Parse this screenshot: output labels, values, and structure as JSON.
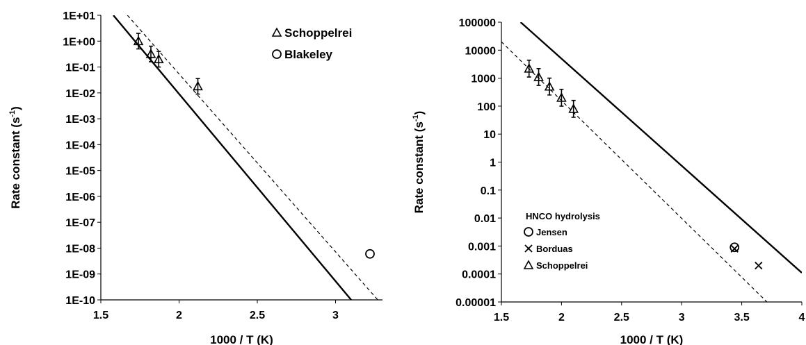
{
  "chart_data": [
    {
      "type": "scatter",
      "xlabel": "1000 / T (K)",
      "ylabel": "Rate constant (s⁻¹)",
      "ylabel_main": "Rate constant (s",
      "ylabel_sup": "-1",
      "ylabel_close": ")",
      "y_scale": "log",
      "xlim": [
        1.5,
        3.3
      ],
      "ylim": [
        1e-10,
        10
      ],
      "x_ticks": [
        1.5,
        2,
        2.5,
        3
      ],
      "x_tick_labels": [
        "1.5",
        "2",
        "2.5",
        "3"
      ],
      "y_ticks": [
        1e-10,
        1e-09,
        1e-08,
        1e-07,
        1e-06,
        1e-05,
        0.0001,
        0.001,
        0.01,
        0.1,
        1,
        10
      ],
      "y_tick_labels": [
        "1E-10",
        "1E-09",
        "1E-08",
        "1E-07",
        "1E-06",
        "1E-05",
        "1E-04",
        "1E-03",
        "1E-02",
        "1E-01",
        "1E+00",
        "1E+01"
      ],
      "legend_position": "top-right",
      "series": [
        {
          "name": "Schoppelrei",
          "marker": "triangle",
          "x": [
            1.74,
            1.82,
            1.87,
            2.12
          ],
          "y": [
            1.0,
            0.32,
            0.2,
            0.018
          ],
          "err_low": [
            0.5,
            0.16,
            0.1,
            0.009
          ],
          "err_high": [
            2.0,
            0.64,
            0.4,
            0.036
          ]
        },
        {
          "name": "Blakeley",
          "marker": "circle",
          "x": [
            3.22
          ],
          "y": [
            6e-09
          ]
        }
      ],
      "lines": [
        {
          "style": "solid",
          "x": [
            1.58,
            3.1
          ],
          "y": [
            10,
            1e-10
          ]
        },
        {
          "style": "dashed",
          "x": [
            1.67,
            3.27
          ],
          "y": [
            10,
            1e-10
          ]
        }
      ]
    },
    {
      "type": "scatter",
      "xlabel": "1000 / T (K)",
      "ylabel": "Rate constant (s⁻¹)",
      "ylabel_main": "Rate constant (s",
      "ylabel_sup": "-1",
      "ylabel_close": ")",
      "y_scale": "log",
      "xlim": [
        1.5,
        4
      ],
      "ylim": [
        1e-05,
        100000
      ],
      "x_ticks": [
        1.5,
        2,
        2.5,
        3,
        3.5,
        4
      ],
      "x_tick_labels": [
        "1.5",
        "2",
        "2.5",
        "3",
        "3.5",
        "4"
      ],
      "y_ticks": [
        1e-05,
        0.0001,
        0.001,
        0.01,
        0.1,
        1,
        10,
        100,
        1000,
        10000,
        100000
      ],
      "y_tick_labels": [
        "0.00001",
        "0.0001",
        "0.001",
        "0.01",
        "0.1",
        "1",
        "10",
        "100",
        "1000",
        "10000",
        "100000"
      ],
      "legend_title": "HNCO hydrolysis",
      "legend_position": "bottom-left",
      "series": [
        {
          "name": "Jensen",
          "marker": "circle",
          "x": [
            3.44
          ],
          "y": [
            0.0009
          ]
        },
        {
          "name": "Borduas",
          "marker": "x",
          "x": [
            3.44,
            3.64
          ],
          "y": [
            0.0008,
            0.0002
          ]
        },
        {
          "name": "Schoppelrei",
          "marker": "triangle",
          "x": [
            1.73,
            1.81,
            1.9,
            2.0,
            2.1
          ],
          "y": [
            2200,
            1100,
            500,
            200,
            80
          ],
          "err_low": [
            1100,
            550,
            250,
            100,
            40
          ],
          "err_high": [
            4400,
            2200,
            1000,
            400,
            160
          ]
        }
      ],
      "lines": [
        {
          "style": "solid",
          "x": [
            1.66,
            4.0
          ],
          "y": [
            100000,
            0.00011
          ]
        },
        {
          "style": "dashed",
          "x": [
            1.5,
            3.71
          ],
          "y": [
            20000,
            1e-05
          ]
        }
      ]
    }
  ]
}
